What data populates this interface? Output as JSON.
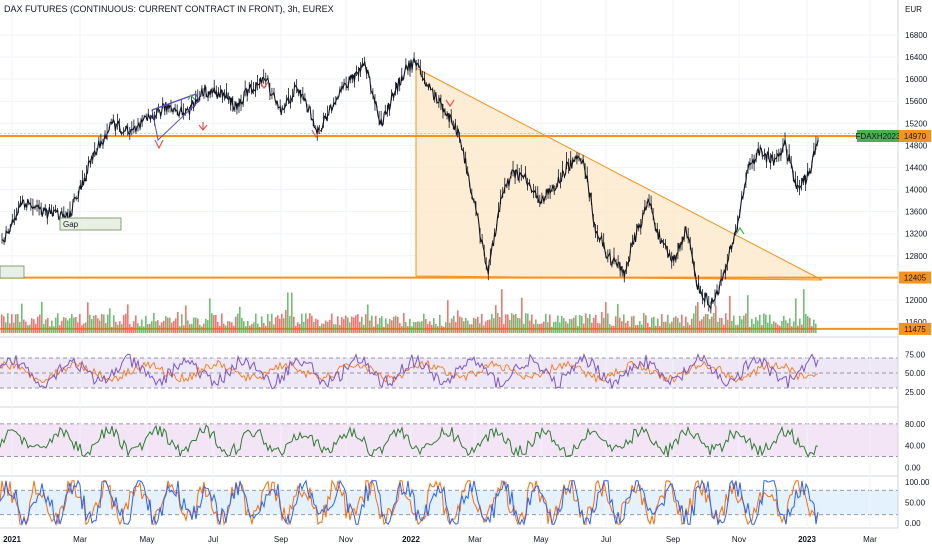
{
  "title": "DAX FUTURES (CONTINUOUS: CURRENT CONTRACT IN FRONT), 3h, EUREX",
  "currency": "EUR",
  "colors": {
    "up": "#4caf50",
    "down": "#ef5350",
    "orange": "#f7931a",
    "triangle_fill": "#fde9c9",
    "rsi": "#7e57c2",
    "rsi_band": "#ede7f6",
    "stoch_green": "#2e7d32",
    "stoch_band": "#f3e5f5",
    "k_line": "#2962ff",
    "d_line": "#ff6d00",
    "blue_band": "#e3f2fd",
    "text": "#131722"
  },
  "chart_data": [
    {
      "type": "line",
      "name": "price",
      "y_ticks": [
        16800,
        16400,
        16000,
        15600,
        15200,
        14800,
        14400,
        14000,
        13600,
        13200,
        12800,
        12400,
        12000,
        11600
      ],
      "y_range": [
        11400,
        17100
      ],
      "x_labels": [
        "2021",
        "Mar",
        "May",
        "Jul",
        "Sep",
        "Nov",
        "2022",
        "Mar",
        "May",
        "Jul",
        "Sep",
        "Nov",
        "2023",
        "Mar"
      ],
      "waypoints": [
        [
          0,
          13000
        ],
        [
          5,
          13800
        ],
        [
          10,
          13600
        ],
        [
          16,
          13500
        ],
        [
          19,
          14000
        ],
        [
          22,
          14600
        ],
        [
          27,
          15200
        ],
        [
          31,
          15000
        ],
        [
          36,
          15300
        ],
        [
          40,
          15500
        ],
        [
          45,
          15400
        ],
        [
          49,
          15800
        ],
        [
          54,
          15700
        ],
        [
          57,
          15500
        ],
        [
          60,
          15800
        ],
        [
          64,
          16000
        ],
        [
          68,
          15400
        ],
        [
          71,
          15800
        ],
        [
          73,
          15700
        ],
        [
          77,
          15000
        ],
        [
          81,
          15700
        ],
        [
          85,
          16000
        ],
        [
          88,
          16300
        ],
        [
          92,
          15200
        ],
        [
          95,
          15700
        ],
        [
          98,
          16200
        ],
        [
          100,
          16300
        ],
        [
          104,
          15800
        ],
        [
          107,
          15500
        ],
        [
          111,
          15000
        ],
        [
          115,
          13600
        ],
        [
          118,
          12500
        ],
        [
          121,
          13800
        ],
        [
          124,
          14300
        ],
        [
          127,
          14200
        ],
        [
          130,
          13800
        ],
        [
          134,
          14000
        ],
        [
          137,
          14400
        ],
        [
          141,
          14600
        ],
        [
          144,
          13300
        ],
        [
          147,
          12800
        ],
        [
          151,
          12500
        ],
        [
          154,
          13200
        ],
        [
          157,
          13800
        ],
        [
          160,
          13000
        ],
        [
          163,
          12700
        ],
        [
          166,
          13300
        ],
        [
          169,
          12200
        ],
        [
          172,
          11900
        ],
        [
          175,
          12400
        ],
        [
          178,
          13200
        ],
        [
          181,
          14400
        ],
        [
          184,
          14700
        ],
        [
          187,
          14500
        ],
        [
          190,
          14800
        ],
        [
          193,
          14000
        ],
        [
          196,
          14300
        ],
        [
          198,
          14900
        ]
      ],
      "marked_prices": [
        {
          "label": "FDAXH2023",
          "value": "14970"
        },
        {
          "value": "12405"
        },
        {
          "value": "11475"
        }
      ]
    },
    {
      "type": "area",
      "name": "volume",
      "x_labels": []
    },
    {
      "type": "line",
      "name": "rsi",
      "y_ticks": [
        "75.00",
        "50.00",
        "25.00"
      ],
      "y_range": [
        10,
        90
      ],
      "levels": [
        70,
        50,
        30
      ]
    },
    {
      "type": "line",
      "name": "stochastic",
      "y_ticks": [
        "80.00",
        "40.00",
        "0.00"
      ],
      "y_range": [
        -10,
        100
      ],
      "levels": [
        80,
        20
      ]
    },
    {
      "type": "line",
      "name": "stoch_rsi",
      "y_ticks": [
        "100.00",
        "50.00",
        "0.00"
      ],
      "y_range": [
        -5,
        105
      ],
      "levels": [
        80,
        20
      ]
    }
  ],
  "annotations": {
    "gap_label": "Gap"
  }
}
